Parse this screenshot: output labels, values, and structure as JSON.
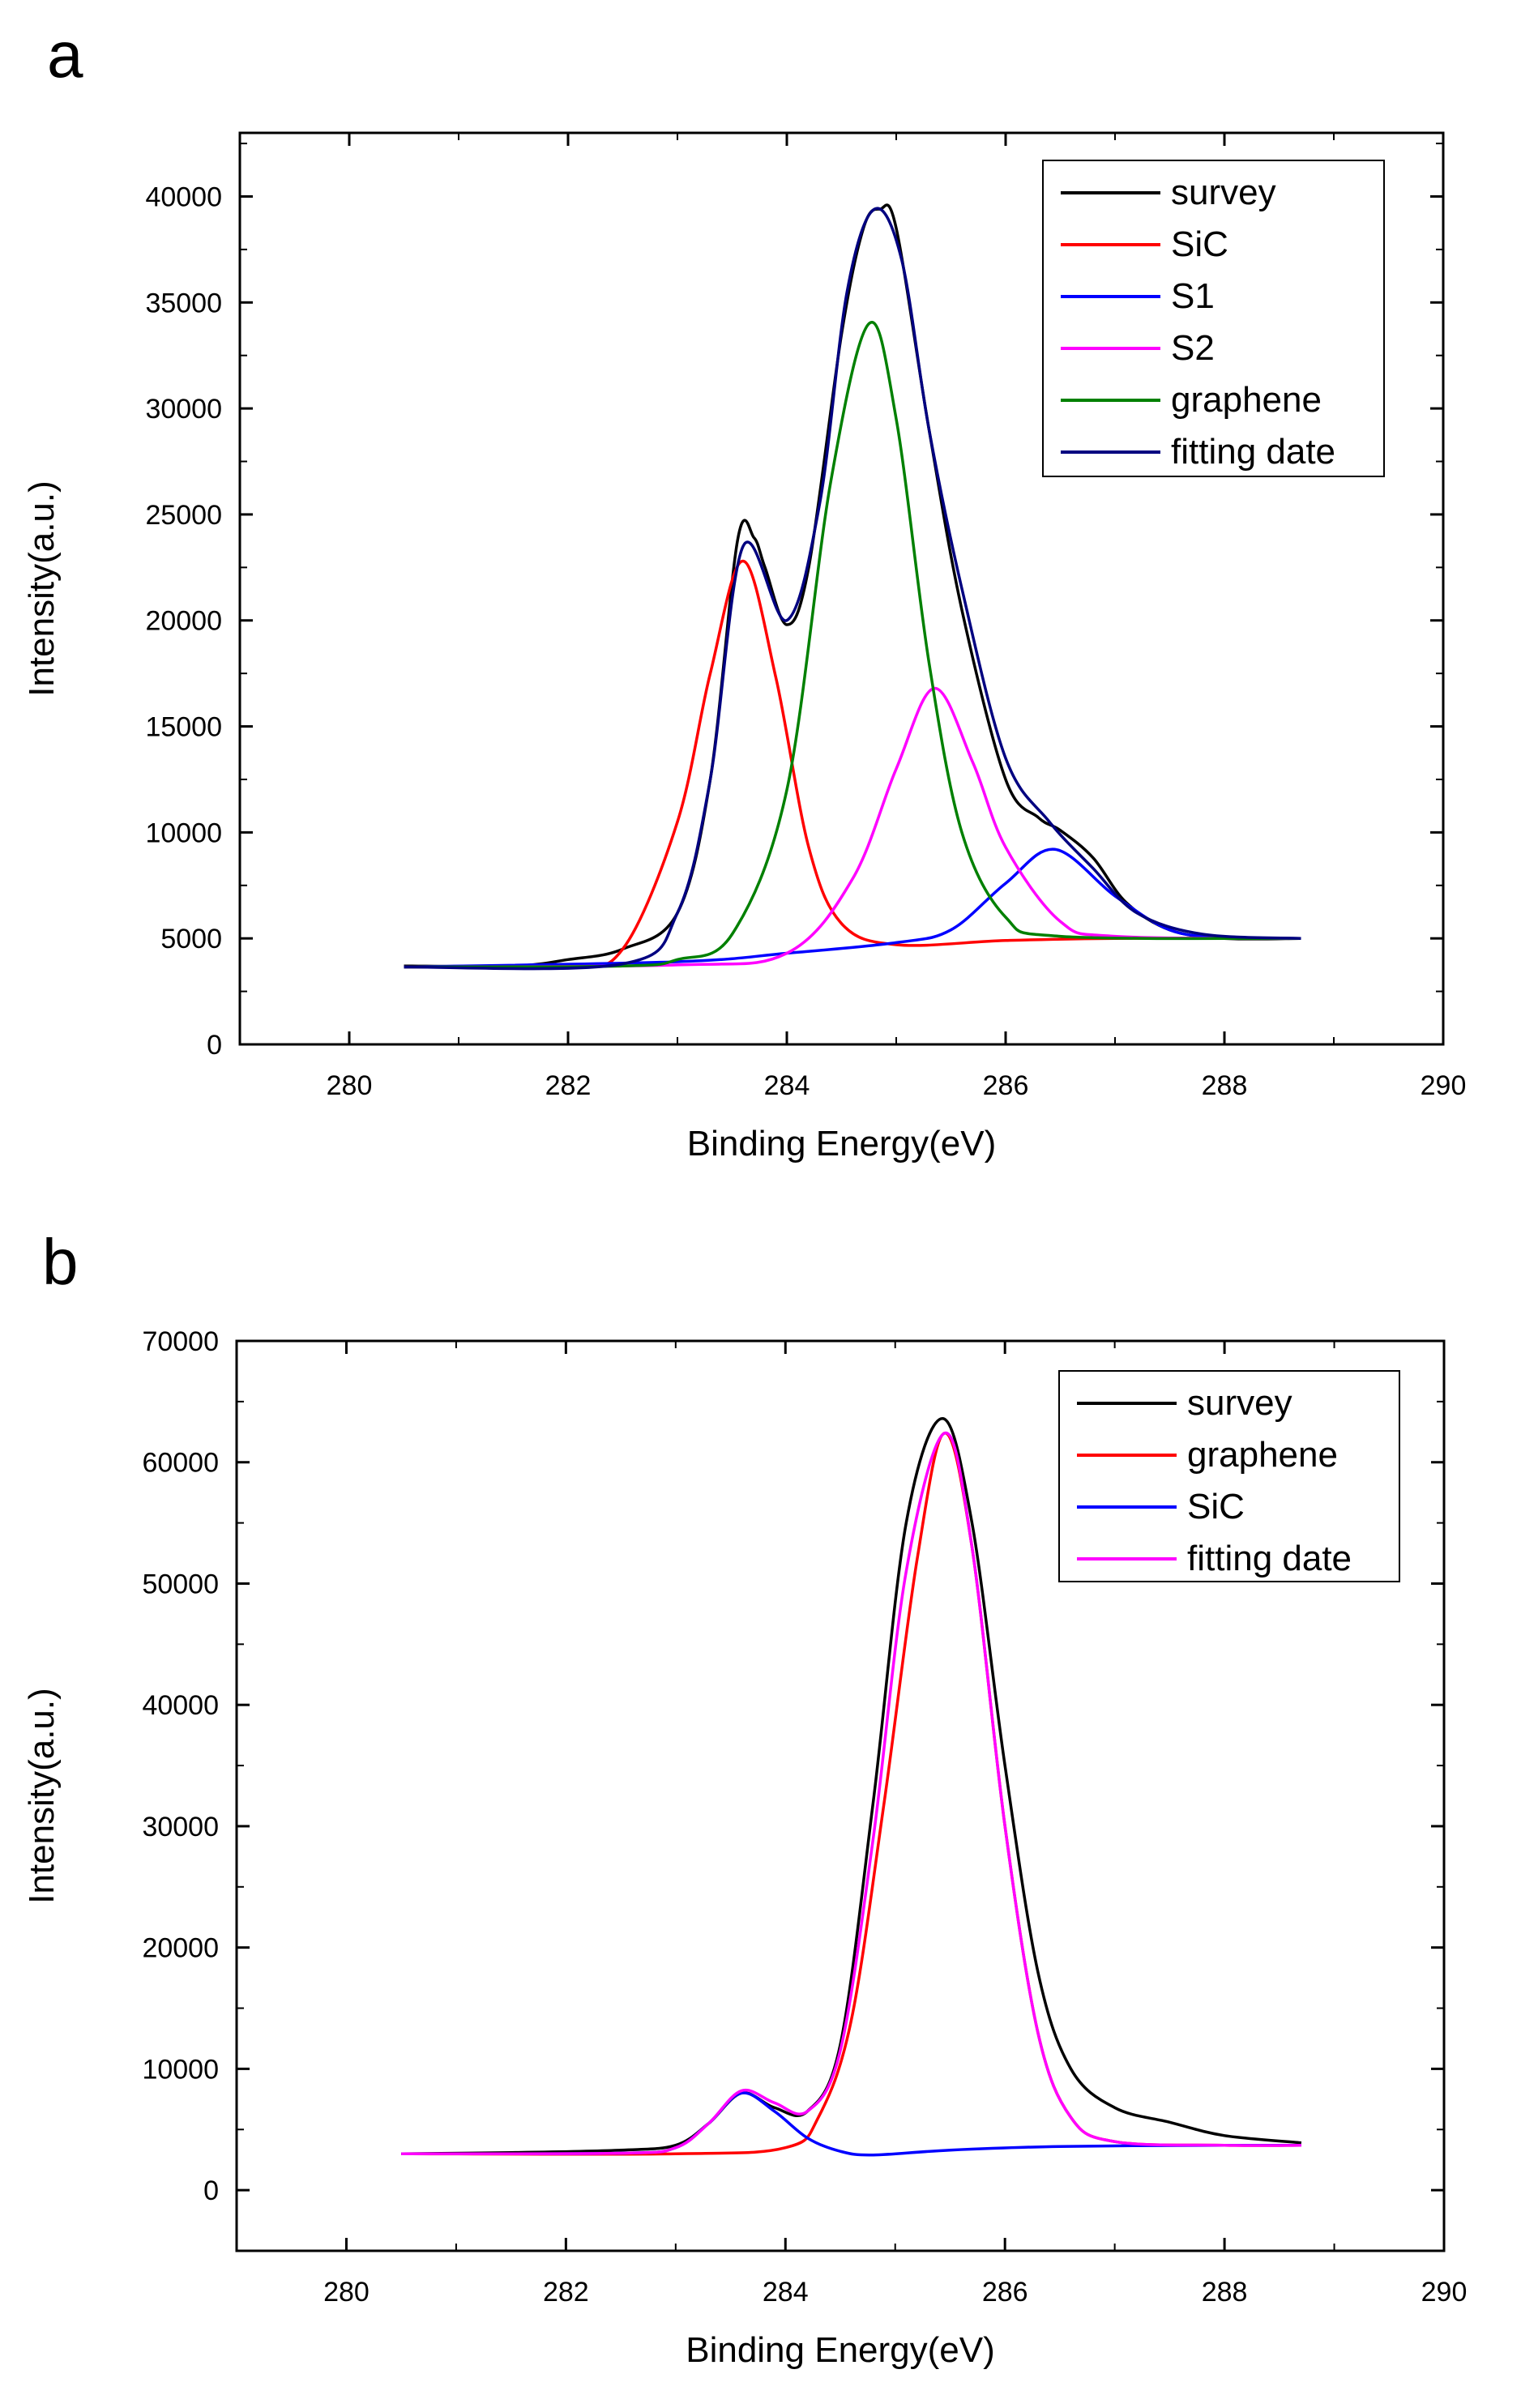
{
  "chart_data": [
    {
      "type": "line",
      "panel_label": "a",
      "title": "",
      "xlabel": "Binding Energy(eV)",
      "ylabel": "Intensity(a.u.)",
      "xlim": [
        279,
        290
      ],
      "ylim": [
        0,
        43000
      ],
      "xticks": [
        280,
        282,
        284,
        286,
        288,
        290
      ],
      "yticks": [
        0,
        5000,
        10000,
        15000,
        20000,
        25000,
        30000,
        35000,
        40000
      ],
      "x_range": [
        280.5,
        288.7
      ],
      "grid": false,
      "legend_position": "top-right",
      "series": [
        {
          "name": "survey",
          "color": "#000000",
          "x": [
            280.5,
            281.5,
            282.0,
            282.5,
            283.0,
            283.3,
            283.55,
            283.7,
            283.8,
            284.0,
            284.2,
            284.5,
            284.7,
            284.85,
            285.0,
            285.3,
            285.6,
            286.0,
            286.3,
            286.5,
            286.8,
            287.1,
            287.5,
            288.0,
            288.7
          ],
          "y": [
            3700,
            3700,
            4000,
            4500,
            6200,
            12500,
            23800,
            23900,
            22500,
            19800,
            22500,
            33500,
            38500,
            39400,
            38500,
            29000,
            20500,
            12500,
            10700,
            10100,
            8800,
            6700,
            5400,
            5000,
            5000
          ]
        },
        {
          "name": "SiC",
          "color": "#ff0000",
          "x": [
            280.5,
            282.0,
            282.5,
            283.0,
            283.3,
            283.6,
            283.9,
            284.2,
            284.5,
            285.0,
            286.0,
            287.0,
            288.7
          ],
          "y": [
            3650,
            3750,
            4500,
            10500,
            17500,
            22800,
            17300,
            9300,
            5700,
            4700,
            4900,
            5000,
            5000
          ]
        },
        {
          "name": "S1",
          "color": "#0000ff",
          "x": [
            280.5,
            283.0,
            284.0,
            285.0,
            285.5,
            286.0,
            286.45,
            287.0,
            287.5,
            288.0,
            288.7
          ],
          "y": [
            3650,
            3900,
            4300,
            4800,
            5400,
            7600,
            9200,
            7000,
            5400,
            5050,
            5000
          ]
        },
        {
          "name": "S2",
          "color": "#ff00ff",
          "x": [
            280.5,
            283.0,
            284.0,
            284.6,
            285.0,
            285.35,
            285.7,
            286.0,
            286.5,
            287.0,
            288.7
          ],
          "y": [
            3650,
            3750,
            4300,
            7800,
            13000,
            16800,
            13300,
            9300,
            5800,
            5100,
            5000
          ]
        },
        {
          "name": "graphene",
          "color": "#008000",
          "x": [
            280.5,
            282.5,
            283.0,
            283.5,
            284.0,
            284.4,
            284.75,
            285.0,
            285.3,
            285.6,
            286.0,
            286.5,
            288.7
          ],
          "y": [
            3650,
            3700,
            4000,
            5200,
            12000,
            26500,
            34000,
            29500,
            18000,
            10000,
            6000,
            5100,
            5000
          ]
        },
        {
          "name": "fitting date",
          "color": "#000080",
          "x": [
            280.5,
            282.5,
            283.0,
            283.3,
            283.6,
            284.0,
            284.3,
            284.55,
            284.8,
            285.05,
            285.3,
            285.6,
            286.0,
            286.4,
            286.8,
            287.2,
            287.8,
            288.7
          ],
          "y": [
            3650,
            3800,
            6200,
            12500,
            23500,
            20000,
            25500,
            35500,
            39400,
            37000,
            29000,
            21500,
            13500,
            10500,
            8300,
            6200,
            5200,
            5000
          ]
        }
      ]
    },
    {
      "type": "line",
      "panel_label": "b",
      "title": "",
      "xlabel": "Binding Energy(eV)",
      "ylabel": "Intensity(a.u.)",
      "xlim": [
        279,
        290
      ],
      "ylim": [
        -5000,
        70000
      ],
      "xticks": [
        280,
        282,
        284,
        286,
        288,
        290
      ],
      "yticks": [
        0,
        10000,
        20000,
        30000,
        40000,
        50000,
        60000,
        70000
      ],
      "x_range": [
        280.5,
        288.7
      ],
      "grid": false,
      "legend_position": "top-right",
      "series": [
        {
          "name": "survey",
          "color": "#000000",
          "x": [
            280.5,
            281.5,
            282.5,
            283.0,
            283.3,
            283.6,
            283.9,
            284.2,
            284.5,
            284.8,
            285.1,
            285.43,
            285.7,
            286.0,
            286.3,
            286.6,
            287.0,
            287.5,
            288.0,
            288.7
          ],
          "y": [
            3000,
            3100,
            3300,
            3700,
            5500,
            8000,
            6800,
            6500,
            12000,
            32000,
            55000,
            63600,
            55000,
            35000,
            18000,
            10000,
            6800,
            5600,
            4500,
            3900
          ]
        },
        {
          "name": "graphene",
          "color": "#ff0000",
          "x": [
            280.5,
            283.0,
            284.0,
            284.3,
            284.6,
            284.9,
            285.2,
            285.45,
            285.7,
            286.0,
            286.3,
            286.6,
            287.0,
            288.0,
            288.7
          ],
          "y": [
            3000,
            3000,
            3500,
            6000,
            14000,
            32000,
            52000,
            62400,
            53000,
            30000,
            13000,
            6000,
            4000,
            3700,
            3700
          ]
        },
        {
          "name": "SiC",
          "color": "#0000ff",
          "x": [
            280.5,
            282.5,
            283.0,
            283.3,
            283.6,
            283.9,
            284.2,
            284.5,
            284.8,
            285.5,
            286.5,
            288.0,
            288.7
          ],
          "y": [
            3000,
            3050,
            3500,
            5500,
            8000,
            6500,
            4300,
            3200,
            2900,
            3300,
            3600,
            3700,
            3700
          ]
        },
        {
          "name": "fitting date",
          "color": "#ff00ff",
          "x": [
            280.5,
            282.5,
            283.0,
            283.3,
            283.6,
            283.9,
            284.2,
            284.5,
            284.8,
            285.1,
            285.45,
            285.7,
            286.0,
            286.3,
            286.6,
            287.0,
            288.0,
            288.7
          ],
          "y": [
            3000,
            3050,
            3500,
            5500,
            8200,
            7200,
            6500,
            11500,
            29000,
            51000,
            62400,
            53000,
            30000,
            13000,
            6000,
            4000,
            3700,
            3700
          ]
        }
      ]
    }
  ]
}
